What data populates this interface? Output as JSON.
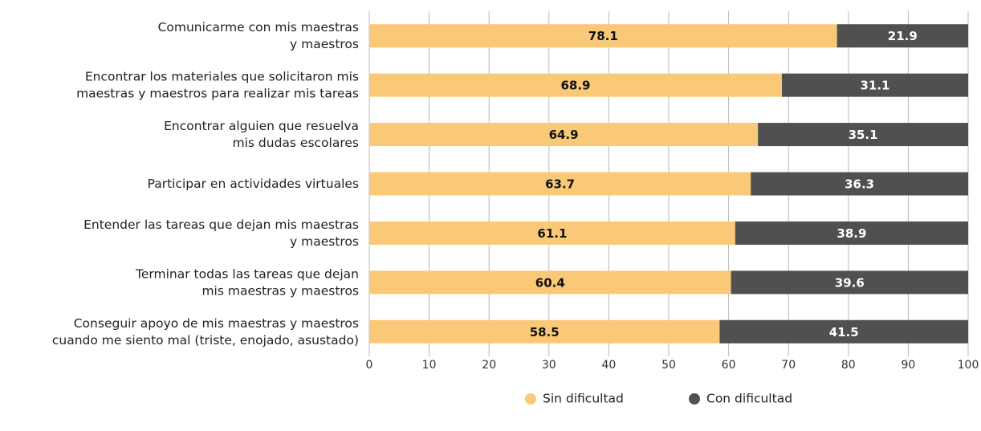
{
  "chart_data": {
    "type": "stacked-bar-horizontal",
    "categories": [
      "Comunicarme con mis maestras\ny maestros",
      "Encontrar los materiales que solicitaron mis\nmaestras y maestros para realizar mis tareas",
      "Encontrar alguien que resuelva\nmis dudas escolares",
      "Participar en actividades virtuales",
      "Entender las tareas que dejan mis maestras\ny maestros",
      "Terminar todas las tareas que dejan\nmis maestras y maestros",
      "Conseguir apoyo de mis maestras y maestros\ncuando me siento mal (triste, enojado, asustado)"
    ],
    "series": [
      {
        "name": "Sin dificultad",
        "color": "#f9c977",
        "values": [
          78.1,
          68.9,
          64.9,
          63.7,
          61.1,
          60.4,
          58.5
        ]
      },
      {
        "name": "Con dificultad",
        "color": "#505050",
        "values": [
          21.9,
          31.1,
          35.1,
          36.3,
          38.9,
          39.6,
          41.5
        ]
      }
    ],
    "xlim": [
      0,
      100
    ],
    "xticks": [
      0,
      10,
      20,
      30,
      40,
      50,
      60,
      70,
      80,
      90,
      100
    ],
    "grid": true,
    "legend": "bottom"
  }
}
